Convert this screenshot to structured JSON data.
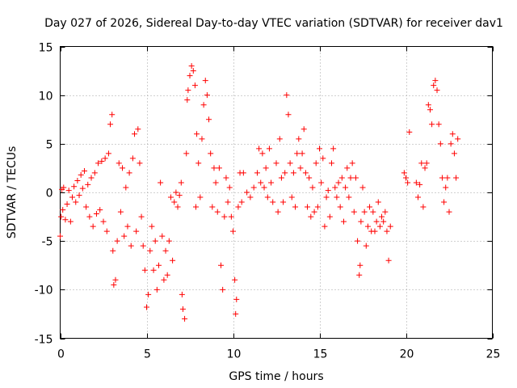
{
  "chart_data": {
    "type": "scatter",
    "title": "Day 027 of 2026, Sidereal Day-to-day VTEC variation (SDTVAR) for receiver dav1",
    "xlabel": "GPS time / hours",
    "ylabel": "SDTVAR / TECUs",
    "xlim": [
      0,
      25
    ],
    "ylim": [
      -15,
      15
    ],
    "xticks": [
      0,
      5,
      10,
      15,
      20,
      25
    ],
    "yticks": [
      -15,
      -10,
      -5,
      0,
      5,
      10,
      15
    ],
    "grid": true,
    "marker": "+",
    "color": "#ff0000",
    "series": [
      {
        "name": "SDTVAR",
        "points": [
          [
            0.0,
            -4.5
          ],
          [
            0.05,
            -2.5
          ],
          [
            0.1,
            0.3
          ],
          [
            0.15,
            -1.8
          ],
          [
            0.2,
            0.5
          ],
          [
            0.3,
            -2.8
          ],
          [
            0.4,
            -1.2
          ],
          [
            0.5,
            0.2
          ],
          [
            0.6,
            -3.0
          ],
          [
            0.7,
            -0.5
          ],
          [
            0.8,
            0.6
          ],
          [
            0.9,
            -1.0
          ],
          [
            1.0,
            1.2
          ],
          [
            1.1,
            -0.3
          ],
          [
            1.2,
            1.8
          ],
          [
            1.3,
            0.4
          ],
          [
            1.4,
            2.2
          ],
          [
            1.5,
            -1.5
          ],
          [
            1.6,
            0.8
          ],
          [
            1.7,
            -2.5
          ],
          [
            1.8,
            1.5
          ],
          [
            1.9,
            -3.5
          ],
          [
            2.0,
            2.0
          ],
          [
            2.1,
            -2.2
          ],
          [
            2.2,
            3.0
          ],
          [
            2.3,
            -1.8
          ],
          [
            2.4,
            3.2
          ],
          [
            2.5,
            -3.0
          ],
          [
            2.6,
            3.5
          ],
          [
            2.7,
            -4.0
          ],
          [
            2.8,
            4.0
          ],
          [
            2.9,
            7.0
          ],
          [
            3.0,
            8.0
          ],
          [
            3.05,
            -6.0
          ],
          [
            3.1,
            -9.5
          ],
          [
            3.2,
            -9.0
          ],
          [
            3.3,
            -5.0
          ],
          [
            3.4,
            3.0
          ],
          [
            3.5,
            -2.0
          ],
          [
            3.6,
            2.5
          ],
          [
            3.7,
            -4.5
          ],
          [
            3.8,
            0.5
          ],
          [
            3.9,
            -3.5
          ],
          [
            4.0,
            2.0
          ],
          [
            4.1,
            -5.5
          ],
          [
            4.2,
            3.5
          ],
          [
            4.3,
            6.0
          ],
          [
            4.4,
            -4.0
          ],
          [
            4.5,
            6.5
          ],
          [
            4.6,
            3.0
          ],
          [
            4.7,
            -2.5
          ],
          [
            4.8,
            -5.5
          ],
          [
            4.9,
            -8.0
          ],
          [
            5.0,
            -11.8
          ],
          [
            5.1,
            -10.5
          ],
          [
            5.2,
            -6.0
          ],
          [
            5.3,
            -3.5
          ],
          [
            5.4,
            -8.0
          ],
          [
            5.5,
            -5.0
          ],
          [
            5.6,
            -10.0
          ],
          [
            5.7,
            -7.5
          ],
          [
            5.8,
            1.0
          ],
          [
            5.9,
            -4.5
          ],
          [
            6.0,
            -9.0
          ],
          [
            6.1,
            -6.0
          ],
          [
            6.2,
            -8.5
          ],
          [
            6.3,
            -5.0
          ],
          [
            6.4,
            -0.5
          ],
          [
            6.5,
            -7.0
          ],
          [
            6.6,
            -1.0
          ],
          [
            6.7,
            0.0
          ],
          [
            6.8,
            -1.5
          ],
          [
            6.9,
            -0.3
          ],
          [
            7.0,
            1.0
          ],
          [
            7.05,
            -10.5
          ],
          [
            7.1,
            -12.0
          ],
          [
            7.2,
            -13.0
          ],
          [
            7.3,
            4.0
          ],
          [
            7.35,
            9.5
          ],
          [
            7.4,
            10.5
          ],
          [
            7.5,
            12.0
          ],
          [
            7.6,
            13.0
          ],
          [
            7.7,
            12.5
          ],
          [
            7.8,
            11.0
          ],
          [
            7.85,
            -1.5
          ],
          [
            7.9,
            6.0
          ],
          [
            8.0,
            3.0
          ],
          [
            8.1,
            -0.5
          ],
          [
            8.2,
            5.5
          ],
          [
            8.3,
            9.0
          ],
          [
            8.4,
            11.5
          ],
          [
            8.5,
            10.0
          ],
          [
            8.6,
            7.5
          ],
          [
            8.7,
            4.0
          ],
          [
            8.8,
            -1.5
          ],
          [
            8.9,
            2.5
          ],
          [
            9.0,
            1.0
          ],
          [
            9.1,
            -2.0
          ],
          [
            9.2,
            2.5
          ],
          [
            9.3,
            -7.5
          ],
          [
            9.4,
            -10.0
          ],
          [
            9.5,
            -2.5
          ],
          [
            9.6,
            1.5
          ],
          [
            9.7,
            -1.0
          ],
          [
            9.8,
            0.5
          ],
          [
            9.9,
            -2.5
          ],
          [
            10.0,
            -4.0
          ],
          [
            10.1,
            -9.0
          ],
          [
            10.15,
            -12.5
          ],
          [
            10.2,
            -11.0
          ],
          [
            10.3,
            -1.5
          ],
          [
            10.4,
            2.0
          ],
          [
            10.5,
            -1.0
          ],
          [
            10.6,
            2.0
          ],
          [
            10.8,
            0.0
          ],
          [
            11.0,
            -0.5
          ],
          [
            11.2,
            0.5
          ],
          [
            11.4,
            2.0
          ],
          [
            11.5,
            4.5
          ],
          [
            11.6,
            1.0
          ],
          [
            11.7,
            4.0
          ],
          [
            11.8,
            0.5
          ],
          [
            11.9,
            2.5
          ],
          [
            12.0,
            -0.5
          ],
          [
            12.1,
            4.5
          ],
          [
            12.2,
            1.0
          ],
          [
            12.3,
            -1.0
          ],
          [
            12.5,
            3.0
          ],
          [
            12.6,
            -2.0
          ],
          [
            12.7,
            5.5
          ],
          [
            12.8,
            1.5
          ],
          [
            12.9,
            -1.0
          ],
          [
            13.0,
            2.0
          ],
          [
            13.1,
            10.0
          ],
          [
            13.2,
            8.0
          ],
          [
            13.3,
            3.0
          ],
          [
            13.4,
            -0.5
          ],
          [
            13.5,
            2.0
          ],
          [
            13.6,
            -1.5
          ],
          [
            13.7,
            4.0
          ],
          [
            13.8,
            5.5
          ],
          [
            13.9,
            2.5
          ],
          [
            14.0,
            4.0
          ],
          [
            14.1,
            6.5
          ],
          [
            14.2,
            2.0
          ],
          [
            14.3,
            -1.5
          ],
          [
            14.4,
            1.5
          ],
          [
            14.5,
            -2.5
          ],
          [
            14.6,
            0.5
          ],
          [
            14.7,
            -2.0
          ],
          [
            14.8,
            3.0
          ],
          [
            14.9,
            -1.5
          ],
          [
            15.0,
            4.5
          ],
          [
            15.1,
            1.0
          ],
          [
            15.2,
            3.5
          ],
          [
            15.3,
            -3.5
          ],
          [
            15.4,
            -0.5
          ],
          [
            15.5,
            0.2
          ],
          [
            15.6,
            -2.5
          ],
          [
            15.7,
            3.0
          ],
          [
            15.8,
            4.5
          ],
          [
            15.9,
            0.5
          ],
          [
            16.0,
            -0.5
          ],
          [
            16.1,
            1.0
          ],
          [
            16.2,
            -1.5
          ],
          [
            16.3,
            1.5
          ],
          [
            16.4,
            -3.0
          ],
          [
            16.5,
            0.5
          ],
          [
            16.6,
            2.5
          ],
          [
            16.7,
            -0.5
          ],
          [
            16.8,
            1.5
          ],
          [
            16.9,
            3.0
          ],
          [
            17.0,
            -2.0
          ],
          [
            17.1,
            1.5
          ],
          [
            17.2,
            -5.0
          ],
          [
            17.3,
            -8.5
          ],
          [
            17.35,
            -7.5
          ],
          [
            17.4,
            -3.0
          ],
          [
            17.5,
            0.5
          ],
          [
            17.6,
            -2.0
          ],
          [
            17.7,
            -5.5
          ],
          [
            17.8,
            -3.5
          ],
          [
            17.9,
            -1.5
          ],
          [
            18.0,
            -4.0
          ],
          [
            18.1,
            -2.0
          ],
          [
            18.2,
            -4.0
          ],
          [
            18.3,
            -3.0
          ],
          [
            18.4,
            -1.0
          ],
          [
            18.5,
            -3.5
          ],
          [
            18.6,
            -2.5
          ],
          [
            18.7,
            -3.0
          ],
          [
            18.8,
            -2.0
          ],
          [
            18.9,
            -4.0
          ],
          [
            19.0,
            -7.0
          ],
          [
            19.1,
            -3.5
          ],
          [
            19.9,
            2.0
          ],
          [
            20.0,
            1.5
          ],
          [
            20.1,
            1.0
          ],
          [
            20.2,
            6.2
          ],
          [
            20.6,
            1.0
          ],
          [
            20.7,
            -0.5
          ],
          [
            20.8,
            0.8
          ],
          [
            20.9,
            3.0
          ],
          [
            21.0,
            -1.5
          ],
          [
            21.1,
            2.5
          ],
          [
            21.2,
            3.0
          ],
          [
            21.3,
            9.0
          ],
          [
            21.4,
            8.5
          ],
          [
            21.5,
            7.0
          ],
          [
            21.6,
            11.0
          ],
          [
            21.7,
            11.5
          ],
          [
            21.8,
            10.5
          ],
          [
            21.9,
            7.0
          ],
          [
            22.0,
            5.0
          ],
          [
            22.1,
            1.5
          ],
          [
            22.2,
            -1.0
          ],
          [
            22.3,
            0.5
          ],
          [
            22.4,
            1.5
          ],
          [
            22.5,
            -2.0
          ],
          [
            22.6,
            5.0
          ],
          [
            22.7,
            6.0
          ],
          [
            22.8,
            4.0
          ],
          [
            22.9,
            1.5
          ],
          [
            23.0,
            5.5
          ]
        ]
      }
    ]
  }
}
